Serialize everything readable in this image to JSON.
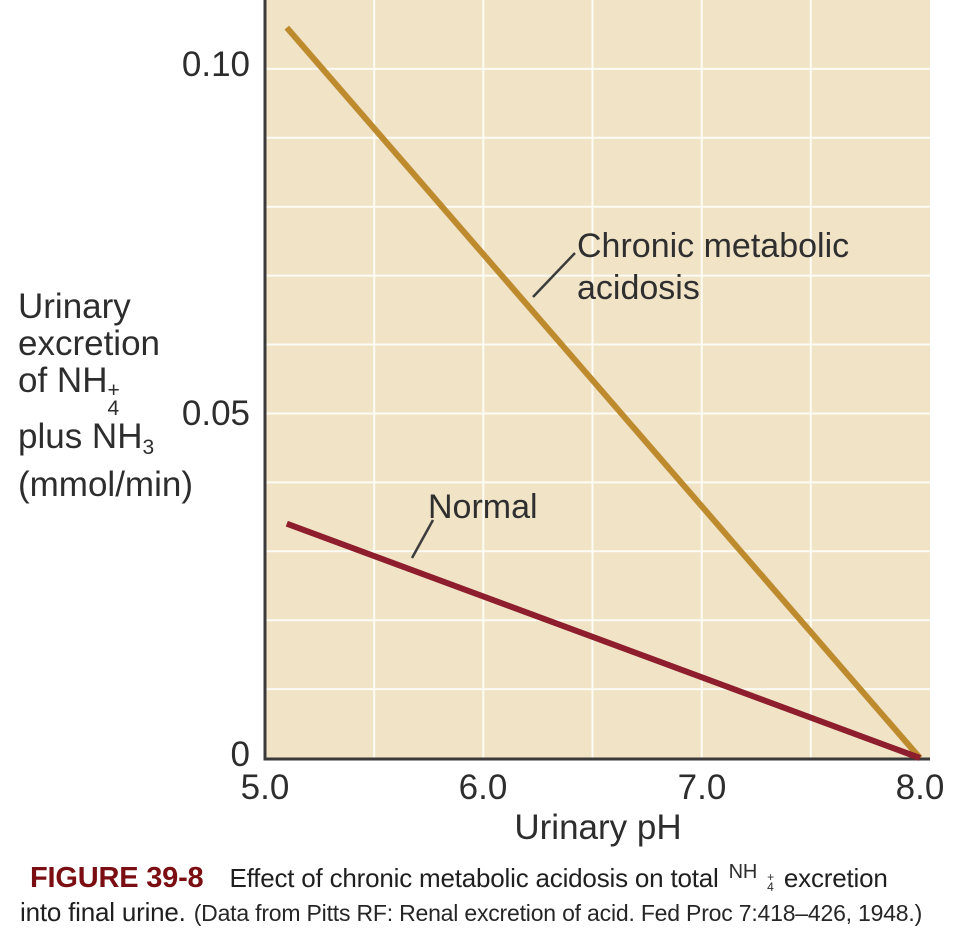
{
  "colors": {
    "plot_bg": "#f0e3c6",
    "grid": "#fcfbf4",
    "axis": "#3a3a3a",
    "annotation_line": "#3c3c3c",
    "acidosis_line": "#bd8b2e",
    "normal_line": "#8e1e2d",
    "figure_label": "#7b0e12",
    "text": "#2d2d2d"
  },
  "y_axis_label": {
    "line1": "Urinary",
    "line2": "excretion",
    "line3_prefix": "of NH",
    "line3_sup": "+",
    "line3_sub": "4",
    "line4_prefix": "plus NH",
    "line4_sub": "3",
    "line5": "(mmol/min)"
  },
  "annotations": {
    "acidosis_line1": "Chronic metabolic",
    "acidosis_line2": "acidosis",
    "normal_label": "Normal"
  },
  "caption": {
    "figure_label": "FIGURE 39-8",
    "line1_text": "Effect of chronic metabolic acidosis on total",
    "formula_prefix": "NH",
    "formula_sup": "+",
    "formula_sub": "4",
    "line1_end": "excretion",
    "line2_text": "into final urine.",
    "source": "(Data from Pitts RF: Renal excretion of acid. Fed Proc 7:418–426, 1948.)"
  },
  "chart_data": {
    "type": "line",
    "title": "",
    "xlabel": "Urinary pH",
    "ylabel": "Urinary excretion of NH4+ plus NH3 (mmol/min)",
    "xlim": [
      5.0,
      8.0
    ],
    "ylim": [
      0,
      0.11
    ],
    "x_ticks": [
      5.0,
      6.0,
      7.0,
      8.0
    ],
    "x_tick_labels": [
      "5.0",
      "6.0",
      "7.0",
      "8.0"
    ],
    "y_ticks": [
      0,
      0.05,
      0.1
    ],
    "y_tick_labels": [
      "0",
      "0.05",
      "0.10"
    ],
    "grid": true,
    "grid_x_step": 0.5,
    "grid_y_step": 0.01,
    "legend_position": "inline-annotations",
    "series": [
      {
        "name": "Chronic metabolic acidosis",
        "color": "#bd8b2e",
        "points": [
          [
            5.1,
            0.106
          ],
          [
            8.0,
            0
          ]
        ]
      },
      {
        "name": "Normal",
        "color": "#8e1e2d",
        "points": [
          [
            5.1,
            0.034
          ],
          [
            8.0,
            0
          ]
        ]
      }
    ]
  }
}
